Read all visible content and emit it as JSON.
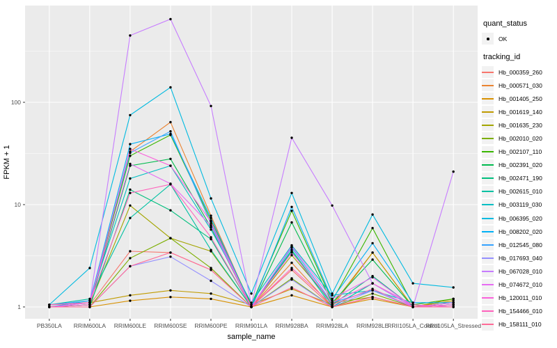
{
  "figure": {
    "background": "#FFFFFF",
    "panel_background": "#EBEBEB",
    "gridline_color": "#FFFFFF",
    "tick_color": "#333333",
    "tick_label_color": "#4D4D4D",
    "axis_title_color": "#000000",
    "point_color": "#000000"
  },
  "legend": {
    "quant_status_title": "quant_status",
    "quant_status_items": [
      {
        "label": "OK",
        "marker": "black-point"
      }
    ],
    "tracking_id_title": "tracking_id"
  },
  "chart_data": {
    "type": "line",
    "title": "",
    "xlabel": "sample_name",
    "ylabel": "FPKM + 1",
    "y_scale": "log10",
    "y_ticks": [
      1,
      10,
      100
    ],
    "y_minor_ticks": [
      3.162,
      31.623,
      316.228
    ],
    "ylim": [
      0.9,
      700
    ],
    "grid": "on",
    "legend_position": "right",
    "point_marker": "solid-circle",
    "categories": [
      "PB350LA",
      "RRIM600LA",
      "RRIM600LE",
      "RRIM600SE",
      "RRIM600PE",
      "RRIM901LA",
      "RRIM928BA",
      "RRIM928LA",
      "RRIM928LE",
      "RRII105LA_Control",
      "RRII105LA_Stressed"
    ],
    "series": [
      {
        "name": "Hb_000359_260",
        "color": "#F8766D",
        "values": [
          1.0,
          1.05,
          3.5,
          3.4,
          2.3,
          1.0,
          2.3,
          1.0,
          1.25,
          1.0,
          1.05
        ]
      },
      {
        "name": "Hb_000571_030",
        "color": "#EA8331",
        "values": [
          1.0,
          1.05,
          33,
          64,
          7.8,
          1.0,
          2.7,
          1.0,
          3.4,
          1.0,
          1.2
        ]
      },
      {
        "name": "Hb_001405_250",
        "color": "#D89000",
        "values": [
          1.0,
          1.0,
          1.15,
          1.25,
          1.2,
          1.0,
          1.3,
          1.0,
          1.2,
          1.0,
          1.1
        ]
      },
      {
        "name": "Hb_001619_140",
        "color": "#C09B00",
        "values": [
          1.05,
          1.1,
          1.3,
          1.45,
          1.35,
          1.05,
          1.5,
          1.05,
          3.4,
          1.0,
          1.15
        ]
      },
      {
        "name": "Hb_001635_230",
        "color": "#A3A500",
        "values": [
          1.0,
          1.05,
          9.8,
          4.7,
          3.5,
          1.0,
          3.2,
          1.1,
          1.25,
          1.0,
          1.2
        ]
      },
      {
        "name": "Hb_002010_020",
        "color": "#7CAE00",
        "values": [
          1.0,
          1.0,
          3.0,
          4.7,
          2.4,
          1.0,
          1.9,
          1.0,
          1.35,
          1.0,
          1.05
        ]
      },
      {
        "name": "Hb_002107_110",
        "color": "#39B600",
        "values": [
          1.0,
          1.1,
          30,
          48,
          7.0,
          1.05,
          8.7,
          1.15,
          5.9,
          1.05,
          1.2
        ]
      },
      {
        "name": "Hb_002391_020",
        "color": "#00BB4E",
        "values": [
          1.0,
          1.05,
          24,
          28,
          6.0,
          1.0,
          6.7,
          1.1,
          2.9,
          1.0,
          1.1
        ]
      },
      {
        "name": "Hb_002471_190",
        "color": "#00BF7D",
        "values": [
          1.0,
          1.0,
          14,
          8.8,
          4.6,
          1.0,
          3.6,
          1.05,
          2.0,
          1.0,
          1.05
        ]
      },
      {
        "name": "Hb_002615_010",
        "color": "#00C1A3",
        "values": [
          1.05,
          1.2,
          7.4,
          15.8,
          3.6,
          1.0,
          3.5,
          1.0,
          1.7,
          1.0,
          1.0
        ]
      },
      {
        "name": "Hb_003119_030",
        "color": "#00BFC4",
        "values": [
          1.0,
          1.15,
          18,
          24,
          5.7,
          1.1,
          4.0,
          1.3,
          1.45,
          1.1,
          1.1
        ]
      },
      {
        "name": "Hb_006395_020",
        "color": "#00BAE0",
        "values": [
          1.05,
          2.4,
          75,
          140,
          11.5,
          1.35,
          13,
          1.35,
          8.0,
          1.7,
          1.55
        ]
      },
      {
        "name": "Hb_008202_020",
        "color": "#00B0F6",
        "values": [
          1.0,
          1.1,
          39,
          49,
          7.4,
          1.0,
          9.5,
          1.2,
          4.2,
          1.1,
          1.1
        ]
      },
      {
        "name": "Hb_012545_080",
        "color": "#35A2FF",
        "values": [
          1.05,
          1.15,
          32,
          52,
          6.5,
          1.0,
          3.8,
          1.1,
          1.45,
          1.0,
          1.05
        ]
      },
      {
        "name": "Hb_017693_040",
        "color": "#9590FF",
        "values": [
          1.0,
          1.0,
          2.5,
          3.1,
          1.8,
          1.0,
          1.85,
          1.0,
          1.45,
          1.0,
          1.05
        ]
      },
      {
        "name": "Hb_067028_010",
        "color": "#C77CFF",
        "values": [
          1.0,
          1.1,
          450,
          650,
          92,
          1.05,
          45,
          9.8,
          1.7,
          1.0,
          21
        ]
      },
      {
        "name": "Hb_074672_010",
        "color": "#E76BF3",
        "values": [
          1.0,
          1.1,
          25,
          16,
          6.2,
          1.0,
          3.9,
          1.2,
          1.95,
          1.0,
          1.1
        ]
      },
      {
        "name": "Hb_120011_010",
        "color": "#FA62DB",
        "values": [
          1.0,
          1.05,
          35,
          24,
          6.8,
          1.0,
          3.4,
          1.1,
          1.7,
          1.05,
          1.0
        ]
      },
      {
        "name": "Hb_154466_010",
        "color": "#FF62BC",
        "values": [
          1.05,
          1.1,
          13,
          15.8,
          4.8,
          1.0,
          2.4,
          1.05,
          1.5,
          1.0,
          1.05
        ]
      },
      {
        "name": "Hb_158111_010",
        "color": "#FF6A98",
        "values": [
          1.0,
          1.0,
          2.5,
          3.4,
          2.3,
          1.0,
          1.55,
          1.0,
          1.25,
          1.0,
          1.0
        ]
      }
    ]
  }
}
